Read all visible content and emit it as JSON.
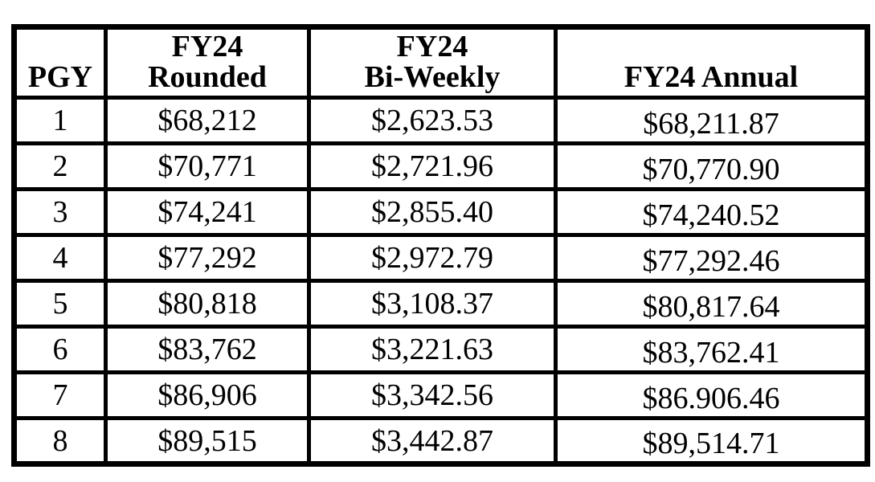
{
  "page": {
    "background_color": "#ffffff",
    "border_color": "#000000",
    "text_color": "#000000"
  },
  "table": {
    "headers": [
      "PGY",
      "FY24\nRounded",
      "FY24\nBi-Weekly",
      "FY24 Annual"
    ],
    "rows": [
      [
        "1",
        "$68,212",
        "$2,623.53",
        "$68,211.87"
      ],
      [
        "2",
        "$70,771",
        "$2,721.96",
        "$70,770.90"
      ],
      [
        "3",
        "$74,241",
        "$2,855.40",
        "$74,240.52"
      ],
      [
        "4",
        "$77,292",
        "$2,972.79",
        "$77,292.46"
      ],
      [
        "5",
        "$80,818",
        "$3,108.37",
        "$80,817.64"
      ],
      [
        "6",
        "$83,762",
        "$3,221.63",
        "$83,762.41"
      ],
      [
        "7",
        "$86,906",
        "$3,342.56",
        "$86.906.46"
      ],
      [
        "8",
        "$89,515",
        "$3,442.87",
        "$89,514.71"
      ]
    ]
  }
}
